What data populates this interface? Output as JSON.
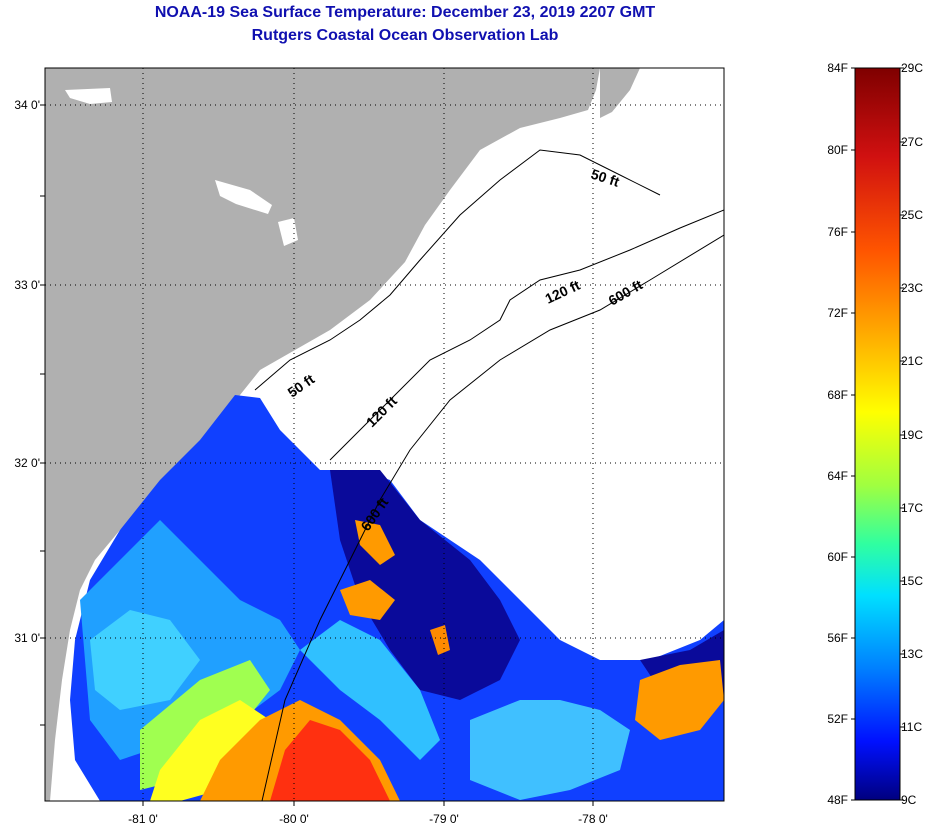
{
  "title": {
    "line1": "NOAA-19 Sea Surface Temperature:  December 23, 2019 2207 GMT",
    "line2": "Rutgers Coastal Ocean Observation Lab"
  },
  "map": {
    "lat_labels": [
      "34 0'",
      "33 0'",
      "32 0'",
      "31 0'"
    ],
    "lon_labels": [
      "-81 0'",
      "-80 0'",
      "-79 0'",
      "-78 0'"
    ],
    "contour_labels": [
      "50 ft",
      "50 ft",
      "120 ft",
      "120 ft",
      "600 ft",
      "600 ft"
    ],
    "colors": {
      "land": "#b0b0b0",
      "cloud": "#ffffff",
      "contour": "#000000",
      "grid": "#000000"
    }
  },
  "colorbar": {
    "f_labels": [
      "84F",
      "80F",
      "76F",
      "72F",
      "68F",
      "64F",
      "60F",
      "56F",
      "52F",
      "48F"
    ],
    "c_labels": [
      "29C",
      "27C",
      "25C",
      "23C",
      "21C",
      "19C",
      "17C",
      "15C",
      "13C",
      "11C",
      "9C"
    ]
  }
}
